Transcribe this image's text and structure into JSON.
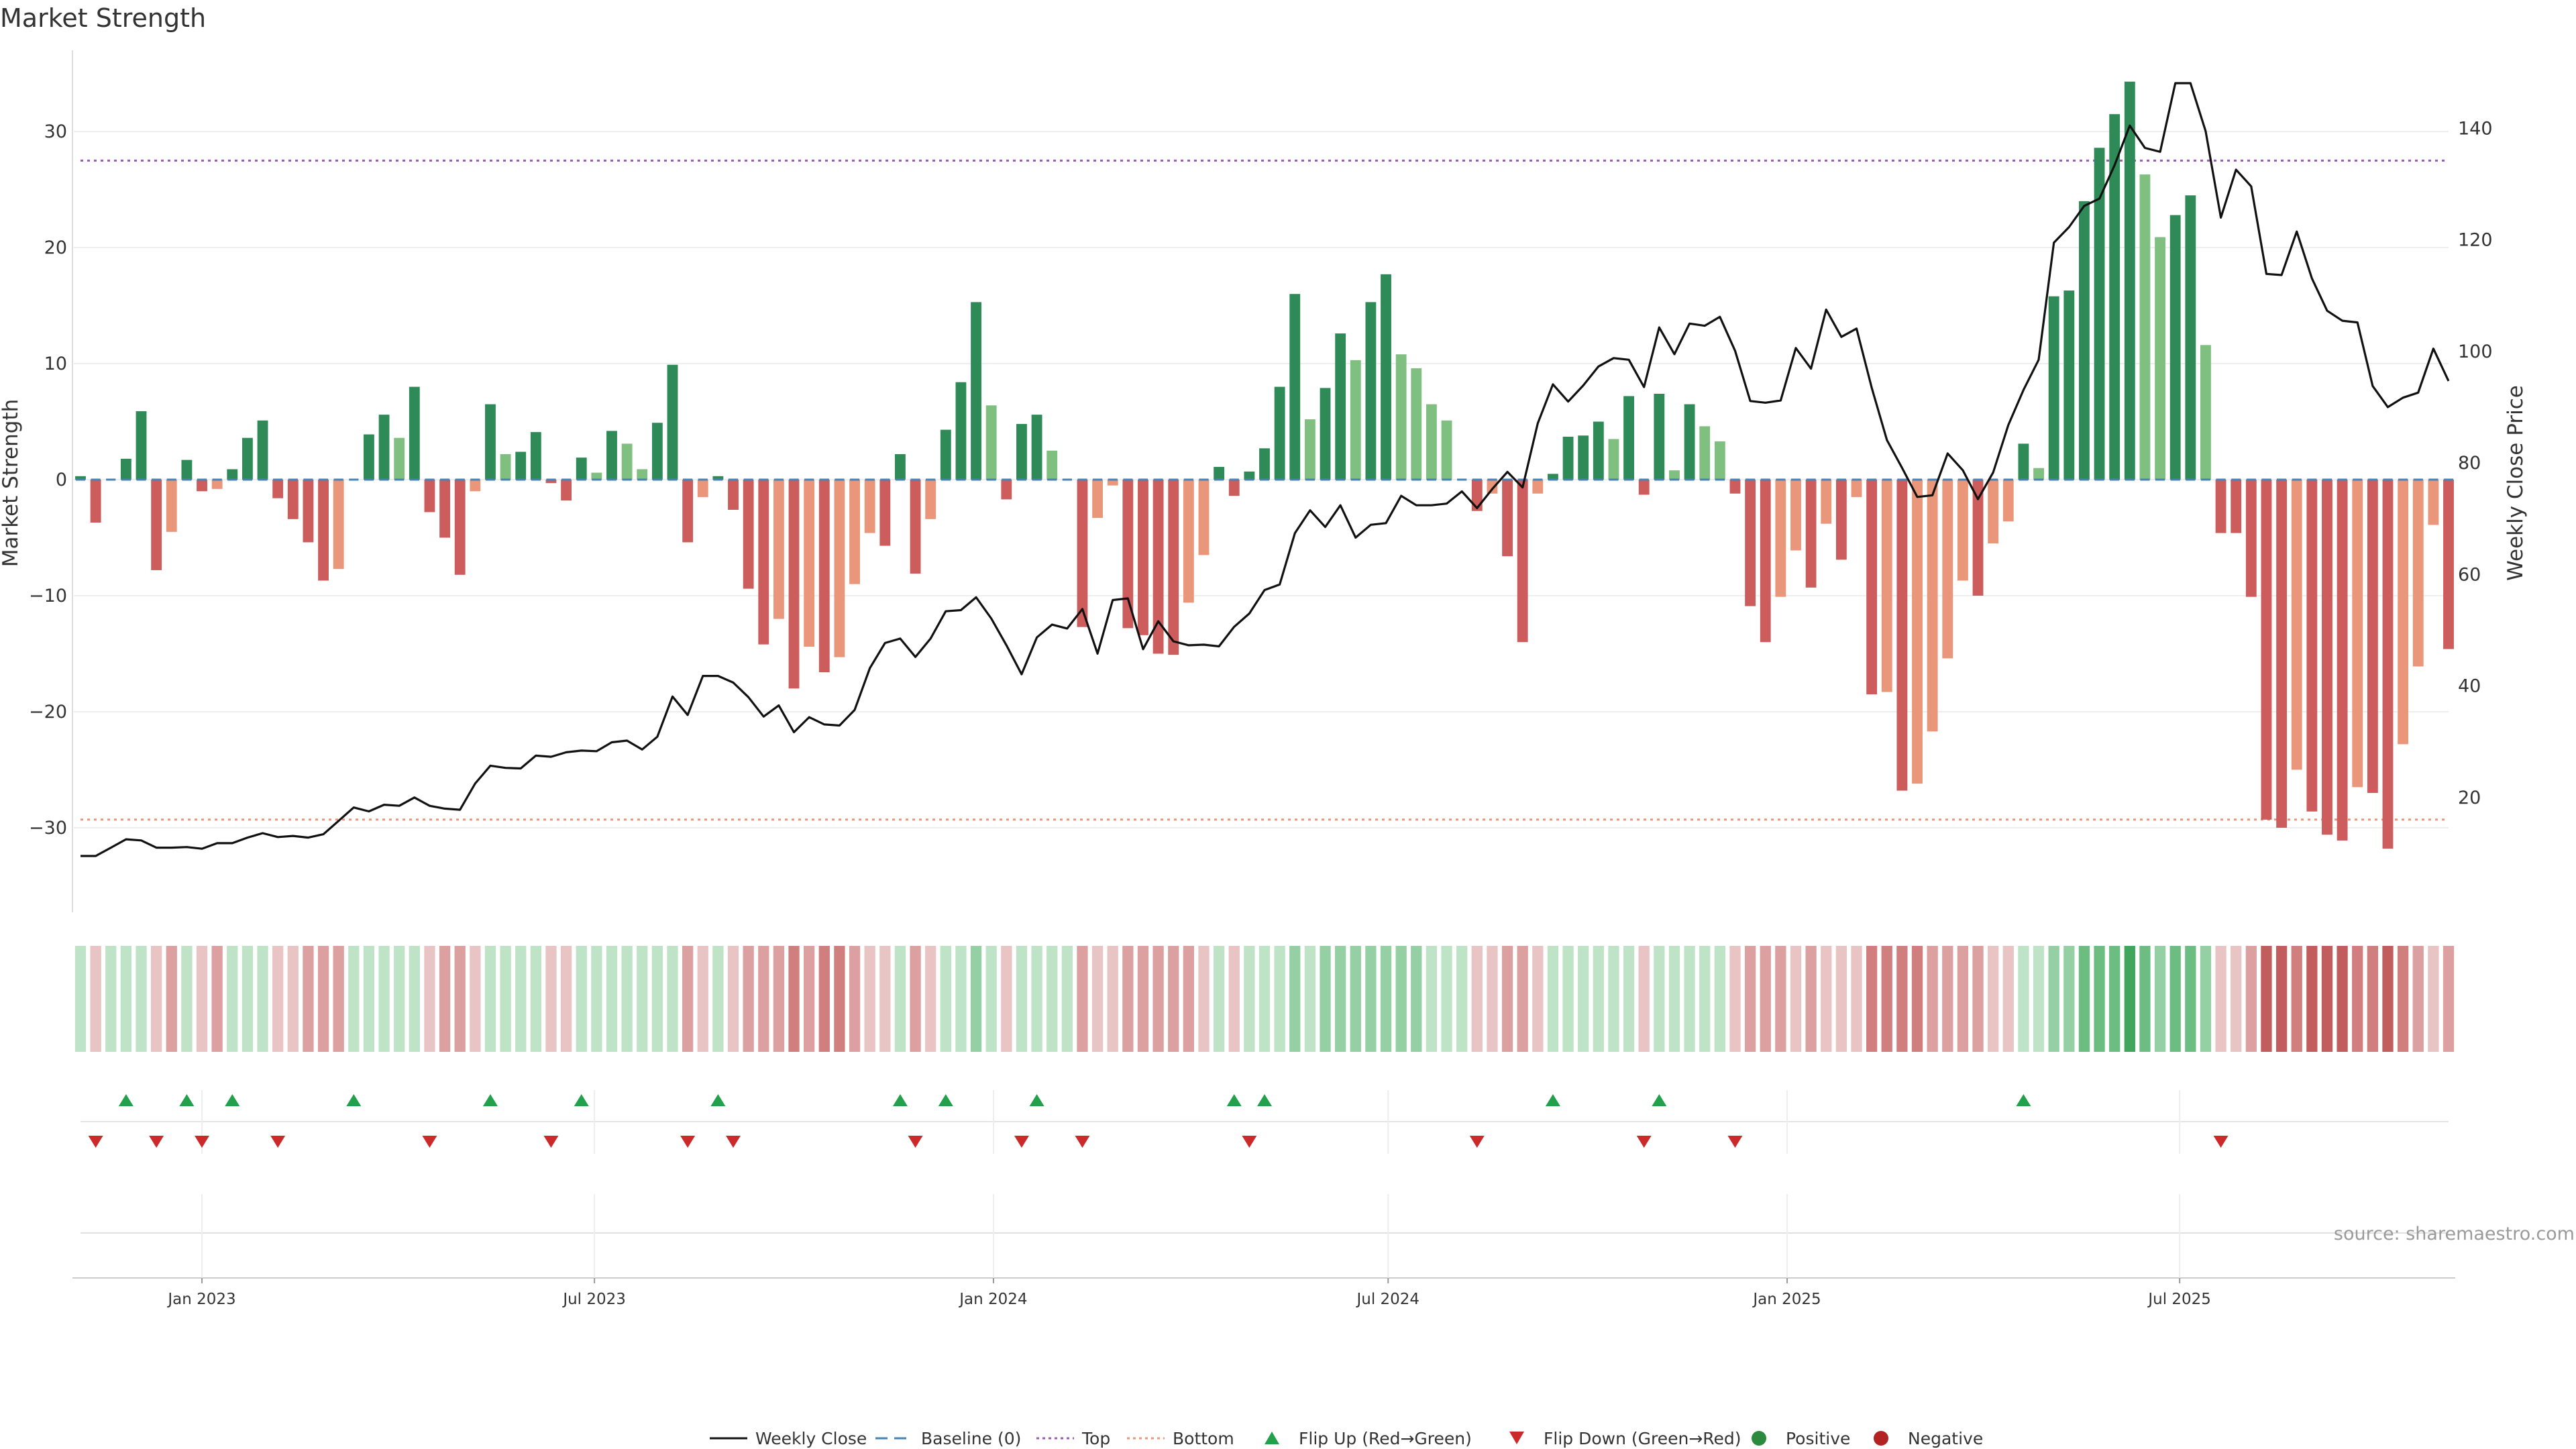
{
  "chart_data": {
    "type": "bar",
    "title": "Market Strength",
    "ylabel_left": "Market Strength",
    "ylabel_right": "Weekly Close Price",
    "ylim_left": [
      -37,
      37
    ],
    "ylim_right": [
      0,
      154
    ],
    "yticks_left": [
      30,
      20,
      10,
      0,
      -10,
      -20,
      -30
    ],
    "yticks_left_labels": [
      "30",
      "20",
      "10",
      "0",
      "−10",
      "−20",
      "−30"
    ],
    "yticks_right": [
      140,
      120,
      100,
      80,
      60,
      40,
      20
    ],
    "yticks_right_labels": [
      "140",
      "120",
      "100",
      "80",
      "60",
      "40",
      "20"
    ],
    "top_line": 27.5,
    "bottom_line": -29.3,
    "x_start": "2022-11-06",
    "x_step_days": 7,
    "date_ticks": [
      {
        "date": "2023-01-01",
        "label": "Jan 2023"
      },
      {
        "date": "2023-07-01",
        "label": "Jul 2023"
      },
      {
        "date": "2024-01-01",
        "label": "Jan 2024"
      },
      {
        "date": "2024-07-01",
        "label": "Jul 2024"
      },
      {
        "date": "2025-01-01",
        "label": "Jan 2025"
      },
      {
        "date": "2025-07-01",
        "label": "Jul 2025"
      }
    ],
    "strength": [
      0.3,
      -3.7,
      0,
      1.8,
      5.9,
      -7.8,
      -4.5,
      1.7,
      -1,
      -0.8,
      0.9,
      3.6,
      5.1,
      -1.6,
      -3.4,
      -5.4,
      -8.7,
      -7.7,
      0,
      3.9,
      5.6,
      3.6,
      8,
      -2.8,
      -5,
      -8.2,
      -1,
      6.5,
      2.2,
      2.4,
      4.1,
      -0.3,
      -1.8,
      1.9,
      0.6,
      4.2,
      3.1,
      0.9,
      4.9,
      9.9,
      -5.4,
      -1.5,
      0.3,
      -2.6,
      -9.4,
      -14.2,
      -12,
      -18,
      -14.4,
      -16.6,
      -15.3,
      -9,
      -4.6,
      -5.7,
      2.2,
      -8.1,
      -3.4,
      4.3,
      8.4,
      15.3,
      6.4,
      -1.7,
      4.8,
      5.6,
      2.5,
      0,
      -12.7,
      -3.3,
      -0.5,
      -12.8,
      -13.4,
      -15,
      -15.1,
      -10.6,
      -6.5,
      1.1,
      -1.4,
      0.7,
      2.7,
      8,
      16,
      5.2,
      7.9,
      12.6,
      10.3,
      15.3,
      17.7,
      10.8,
      9.6,
      6.5,
      5.1,
      0,
      -2.7,
      -1.2,
      -6.6,
      -14,
      -1.2,
      0.5,
      3.7,
      3.8,
      5,
      3.5,
      7.2,
      -1.3,
      7.4,
      0.8,
      6.5,
      4.6,
      3.3,
      -1.2,
      -10.9,
      -14,
      -10.1,
      -6.1,
      -9.3,
      -3.8,
      -6.9,
      -1.5,
      -18.5,
      -18.3,
      -26.8,
      -26.2,
      -21.7,
      -15.4,
      -8.7,
      -10,
      -5.5,
      -3.6,
      3.1,
      1,
      15.8,
      16.3,
      24,
      28.6,
      31.5,
      34.3,
      26.3,
      20.9,
      22.8,
      24.5,
      11.6,
      -4.6,
      -4.6,
      -10.1,
      -29.3,
      -30,
      -25,
      -28.6,
      -30.6,
      -31.1,
      -26.5,
      -27,
      -31.8,
      -22.8,
      -16.1,
      -3.9,
      -14.6
    ],
    "close": [
      9.5,
      9.5,
      11,
      12.5,
      12.3,
      11,
      11,
      11.1,
      10.8,
      11.8,
      11.8,
      12.8,
      13.6,
      12.9,
      13.1,
      12.8,
      13.4,
      15.8,
      18.2,
      17.5,
      18.7,
      18.5,
      20,
      18.5,
      18,
      17.8,
      22.5,
      25.7,
      25.3,
      25.2,
      27.5,
      27.3,
      28.1,
      28.4,
      28.3,
      29.9,
      30.2,
      28.6,
      30.9,
      38.1,
      34.8,
      41.8,
      41.8,
      40.6,
      38,
      34.5,
      36.5,
      31.7,
      34.4,
      33.1,
      32.9,
      35.7,
      43.2,
      47.7,
      48.5,
      45.2,
      48.5,
      53.4,
      53.6,
      55.9,
      52.1,
      47.3,
      42.1,
      48.7,
      51,
      50.3,
      53.8,
      45.8,
      55.4,
      55.7,
      46.6,
      51.6,
      48,
      47.3,
      47.4,
      47.1,
      50.6,
      53,
      57.2,
      58.2,
      67.4,
      71.5,
      68.5,
      72.4,
      66.6,
      68.9,
      69.2,
      74.1,
      72.4,
      72.4,
      72.7,
      74.9,
      71.9,
      75.3,
      78.4,
      75.6,
      87.1,
      94.1,
      91,
      93.9,
      97.3,
      98.8,
      98.5,
      93.6,
      104.3,
      99.5,
      105,
      104.6,
      106.2,
      100.1,
      91.1,
      90.8,
      91.2,
      100.6,
      96.9,
      107.5,
      102.6,
      104.1,
      93.5,
      84.1,
      79.1,
      73.9,
      74.2,
      81.7,
      78.7,
      73.5,
      78.3,
      86.8,
      93.1,
      98.5,
      119.5,
      122.3,
      126.1,
      127.4,
      133.4,
      140.5,
      136.5,
      135.8,
      148.1,
      148.1,
      139.5,
      124,
      132.6,
      129.6,
      113.9,
      113.7,
      121.5,
      113.1,
      107.3,
      105.5,
      105.2,
      93.8,
      90,
      91.7,
      92.6,
      100.5,
      94.7
    ],
    "heat_levels": [
      1,
      1,
      1,
      1,
      1,
      1,
      2,
      1,
      1,
      2,
      1,
      1,
      1,
      1,
      1,
      2,
      2,
      2,
      1,
      1,
      1,
      1,
      1,
      1,
      2,
      2,
      1,
      1,
      1,
      1,
      1,
      1,
      1,
      1,
      1,
      1,
      1,
      1,
      1,
      1,
      2,
      1,
      1,
      1,
      2,
      2,
      2,
      3,
      2,
      3,
      3,
      2,
      1,
      1,
      1,
      2,
      1,
      1,
      1,
      2,
      1,
      1,
      1,
      1,
      1,
      1,
      2,
      1,
      1,
      2,
      2,
      2,
      2,
      2,
      1,
      1,
      1,
      1,
      1,
      1,
      2,
      1,
      2,
      2,
      2,
      2,
      2,
      2,
      2,
      1,
      1,
      1,
      1,
      1,
      2,
      2,
      1,
      1,
      1,
      1,
      1,
      1,
      1,
      1,
      1,
      1,
      1,
      1,
      1,
      1,
      2,
      2,
      2,
      1,
      2,
      1,
      1,
      1,
      3,
      3,
      3,
      3,
      2,
      2,
      2,
      2,
      1,
      1,
      1,
      1,
      2,
      2,
      3,
      3,
      3,
      4,
      3,
      2,
      3,
      3,
      2,
      1,
      1,
      2,
      4,
      4,
      3,
      4,
      4,
      4,
      3,
      3,
      4,
      3,
      2,
      1,
      2
    ],
    "flip_up_weeks": [
      3,
      7,
      10,
      18,
      27,
      33,
      42,
      54,
      57,
      63,
      76,
      78,
      97,
      104,
      128
    ],
    "flip_down_weeks": [
      1,
      5,
      8,
      13,
      23,
      31,
      40,
      43,
      55,
      62,
      66,
      77,
      92,
      103,
      109,
      141
    ],
    "legend": [
      {
        "label": "Weekly Close",
        "kind": "line",
        "color": "#111111"
      },
      {
        "label": "Baseline (0)",
        "kind": "dash",
        "color": "#4682b4"
      },
      {
        "label": "Top",
        "kind": "dot",
        "color": "#9b59b6"
      },
      {
        "label": "Bottom",
        "kind": "dot",
        "color": "#e9967a"
      },
      {
        "label": "Flip Up (Red→Green)",
        "kind": "tri-up",
        "color": "#22a04b"
      },
      {
        "label": "Flip Down (Green→Red)",
        "kind": "tri-down",
        "color": "#cc2a2a"
      },
      {
        "label": "Positive",
        "kind": "circle",
        "color": "#2b8a3e"
      },
      {
        "label": "Negative",
        "kind": "circle",
        "color": "#b22222"
      }
    ],
    "colors": {
      "pos_strong": "#2e8b57",
      "pos_weak": "#7fbf7f",
      "neg_strong": "#cd5c5c",
      "neg_weak": "#e9967a",
      "price_line": "#111111",
      "baseline": "#4682b4",
      "top_line": "#9b59b6",
      "bottom_line": "#e9967a"
    }
  },
  "source": "source: sharemaestro.com"
}
